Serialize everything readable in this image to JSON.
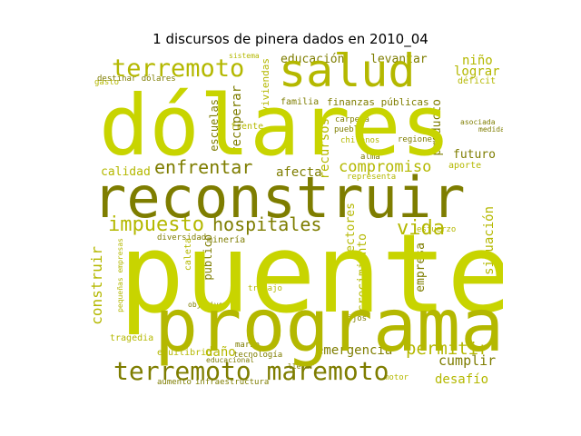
{
  "title": "1 discursos de pinera dados en 2010_04",
  "colors": {
    "bright": "#c8d400",
    "medium": "#b4b800",
    "dark": "#7e7d00",
    "pale": "#d8dc7a"
  },
  "words": {
    "puente": "puente",
    "dolares": "dólares",
    "reconstruir": "reconstruir",
    "programa": "programa",
    "salud": "salud",
    "terremoto": "terremoto",
    "terremoto_maremoto": "terremoto maremoto",
    "hospitales": "hospitales",
    "enfrentar": "enfrentar",
    "impuesto": "impuesto",
    "vida": "vida",
    "compromiso": "compromiso",
    "construir": "construir",
    "calidad": "calidad",
    "afecta": "afecta",
    "educacion": "educación",
    "levantar": "levantar",
    "nino": "niño",
    "lograr": "lograr",
    "recuperar": "recuperar",
    "escuelas": "escuelas",
    "viviendas": "viviendas",
    "futuro": "futuro",
    "emergencia": "emergencia",
    "permitir": "permitir",
    "cumplir": "cumplir",
    "desafio": "desafío",
    "dano": "daño",
    "situacion": "situación",
    "empresa": "empresa",
    "sectores": "sectores",
    "recursos": "recursos",
    "crecimiento": "crecimiento",
    "publico": "público",
    "producto": "producto",
    "finanzas_publicas": "finanzas públicas",
    "gasto": "gasto",
    "destinar_dolares": "destinar dólares",
    "familia": "familia",
    "deficit": "déficit",
    "equilibrio": "equilibrio",
    "tragedia": "tragedia",
    "marzo": "marzo",
    "frente": "frente",
    "mineria": "minería",
    "aumento": "aumento",
    "infraestructura": "infraestructura",
    "sistema": "sistema",
    "pueblo": "pueblo",
    "aporte": "aporte",
    "trabajo": "trabajo",
    "chilenos": "chilenos",
    "carpeta": "carpeta",
    "tecnologia": "tecnología",
    "esfuerzo": "esfuerzo",
    "regiones": "regiones",
    "diversidad": "diversidad",
    "alma": "alma",
    "representa": "representa",
    "objetivo": "objetivo",
    "hijos": "hijos",
    "caleta": "caleta",
    "pequenas_empresas": "pequeñas empresas",
    "educacional": "educacional",
    "motor": "motor",
    "llevar": "llevar",
    "asociada": "asociada",
    "medida": "medida"
  }
}
